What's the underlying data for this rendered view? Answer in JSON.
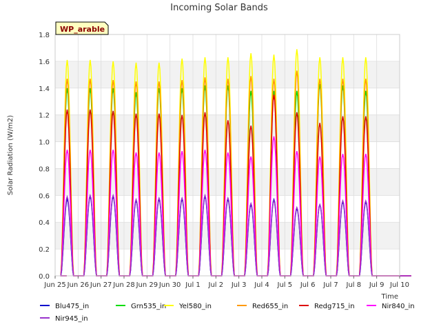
{
  "chart_data": {
    "type": "line",
    "title": "Incoming Solar Bands",
    "xlabel": "Time",
    "ylabel": "Solar Radiation (W/m2)",
    "ylim": [
      0,
      1.8
    ],
    "yticks": [
      "0.0",
      "0.2",
      "0.4",
      "0.6",
      "0.8",
      "1.0",
      "1.2",
      "1.4",
      "1.6",
      "1.8"
    ],
    "xlim": [
      "Jun 25",
      "Jul 10"
    ],
    "xticks": [
      "Jun 25",
      "Jun 26",
      "Jun 27",
      "Jun 28",
      "Jun 29",
      "Jun 30",
      "Jul 1",
      "Jul 2",
      "Jul 3",
      "Jul 4",
      "Jul 5",
      "Jul 6",
      "Jul 7",
      "Jul 8",
      "Jul 9",
      "Jul 10"
    ],
    "grid": true,
    "legend": "bottom",
    "station_label": "WP_arable",
    "days": [
      "Jun 25",
      "Jun 26",
      "Jun 27",
      "Jun 28",
      "Jun 29",
      "Jun 30",
      "Jul 1",
      "Jul 2",
      "Jul 3",
      "Jul 4",
      "Jul 5",
      "Jul 6",
      "Jul 7",
      "Jul 8"
    ],
    "series": [
      {
        "name": "Blu475_in",
        "color": "#0000cc",
        "peaks": [
          0.57,
          0.59,
          0.59,
          0.56,
          0.57,
          0.57,
          0.59,
          0.57,
          0.53,
          0.57,
          0.5,
          0.53,
          0.55,
          0.55
        ]
      },
      {
        "name": "Grn535_in",
        "color": "#00dd00",
        "peaks": [
          1.4,
          1.4,
          1.4,
          1.37,
          1.4,
          1.4,
          1.42,
          1.42,
          1.38,
          1.38,
          1.38,
          1.43,
          1.42,
          1.38
        ]
      },
      {
        "name": "Yel580_in",
        "color": "#ffff00",
        "peaks": [
          1.61,
          1.61,
          1.6,
          1.59,
          1.59,
          1.62,
          1.63,
          1.63,
          1.66,
          1.65,
          1.69,
          1.63,
          1.63,
          1.63
        ]
      },
      {
        "name": "Red655_in",
        "color": "#ff9900",
        "peaks": [
          1.47,
          1.47,
          1.46,
          1.45,
          1.45,
          1.46,
          1.48,
          1.47,
          1.49,
          1.47,
          1.53,
          1.47,
          1.47,
          1.47
        ]
      },
      {
        "name": "Redg715_in",
        "color": "#dd0000",
        "peaks": [
          1.24,
          1.24,
          1.23,
          1.21,
          1.21,
          1.2,
          1.22,
          1.16,
          1.12,
          1.35,
          1.22,
          1.14,
          1.19,
          1.19
        ]
      },
      {
        "name": "Nir840_in",
        "color": "#ff00ff",
        "peaks": [
          0.94,
          0.94,
          0.94,
          0.92,
          0.92,
          0.93,
          0.94,
          0.92,
          0.89,
          1.04,
          0.93,
          0.89,
          0.91,
          0.91
        ]
      },
      {
        "name": "Nir945_in",
        "color": "#9933cc",
        "peaks": [
          0.59,
          0.6,
          0.6,
          0.57,
          0.58,
          0.58,
          0.6,
          0.58,
          0.54,
          0.56,
          0.51,
          0.53,
          0.56,
          0.56
        ]
      }
    ]
  }
}
